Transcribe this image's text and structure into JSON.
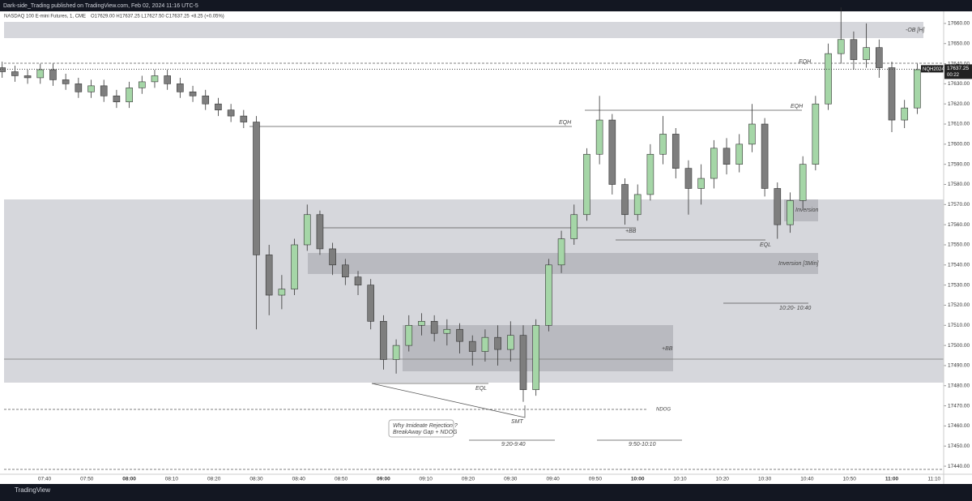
{
  "header": {
    "publisher": "Dark-side_Trading published on TradingView.com, Feb 02, 2024 11:16 UTC-5",
    "brand": "TradingView"
  },
  "chart_data": {
    "type": "candlestick",
    "title": "NASDAQ 100 E-mini Futures, 1, CME",
    "ohlc_text": "O17629.00 H17637.25 L17627.50 C17637.25 +8.25 (+0.05%)",
    "symbol": "NQH2024",
    "last_price": 17637.25,
    "countdown": "00:22",
    "up_color": "#a5d6a7",
    "down_color": "#7e7e7e",
    "x": [
      "07:30",
      "07:33",
      "07:36",
      "07:39",
      "07:42",
      "07:45",
      "07:48",
      "07:51",
      "07:54",
      "07:57",
      "08:00",
      "08:03",
      "08:06",
      "08:09",
      "08:12",
      "08:15",
      "08:18",
      "08:21",
      "08:24",
      "08:27",
      "08:30",
      "08:33",
      "08:36",
      "08:39",
      "08:42",
      "08:45",
      "08:48",
      "08:51",
      "08:54",
      "08:57",
      "09:00",
      "09:03",
      "09:06",
      "09:09",
      "09:12",
      "09:15",
      "09:18",
      "09:21",
      "09:24",
      "09:27",
      "09:30",
      "09:33",
      "09:36",
      "09:39",
      "09:42",
      "09:45",
      "09:48",
      "09:51",
      "09:54",
      "09:57",
      "10:00",
      "10:03",
      "10:06",
      "10:09",
      "10:12",
      "10:15",
      "10:18",
      "10:21",
      "10:24",
      "10:27",
      "10:30",
      "10:33",
      "10:36",
      "10:39",
      "10:42",
      "10:45",
      "10:48",
      "10:51",
      "10:54",
      "10:57",
      "11:00",
      "11:03",
      "11:06"
    ],
    "open": [
      17638,
      17636,
      17634,
      17633,
      17637,
      17632,
      17630,
      17626,
      17629,
      17624,
      17621,
      17628,
      17631,
      17634,
      17630,
      17626,
      17624,
      17620,
      17617,
      17614,
      17611,
      17545,
      17525,
      17528,
      17550,
      17565,
      17548,
      17540,
      17534,
      17530,
      17512,
      17493,
      17500,
      17510,
      17512,
      17506,
      17508,
      17502,
      17497,
      17504,
      17498,
      17505,
      17478,
      17510,
      17540,
      17553,
      17565,
      17595,
      17612,
      17580,
      17565,
      17575,
      17595,
      17605,
      17588,
      17578,
      17583,
      17598,
      17590,
      17600,
      17610,
      17578,
      17560,
      17572,
      17590,
      17620,
      17645,
      17652,
      17642,
      17648,
      17638,
      17612,
      17618
    ],
    "high": [
      17641,
      17639,
      17637,
      17640,
      17640,
      17635,
      17633,
      17632,
      17632,
      17627,
      17631,
      17634,
      17637,
      17637,
      17633,
      17629,
      17627,
      17623,
      17620,
      17617,
      17614,
      17550,
      17535,
      17553,
      17570,
      17567,
      17551,
      17543,
      17537,
      17533,
      17515,
      17503,
      17515,
      17516,
      17515,
      17513,
      17511,
      17505,
      17508,
      17510,
      17512,
      17510,
      17513,
      17543,
      17557,
      17570,
      17598,
      17624,
      17615,
      17583,
      17580,
      17600,
      17614,
      17608,
      17592,
      17590,
      17602,
      17603,
      17605,
      17620,
      17613,
      17581,
      17576,
      17594,
      17624,
      17650,
      17668,
      17656,
      17660,
      17652,
      17641,
      17622,
      17640
    ],
    "low": [
      17633,
      17631,
      17630,
      17630,
      17629,
      17627,
      17623,
      17623,
      17621,
      17618,
      17618,
      17625,
      17628,
      17627,
      17623,
      17621,
      17617,
      17614,
      17611,
      17608,
      17508,
      17515,
      17518,
      17525,
      17547,
      17545,
      17535,
      17530,
      17525,
      17508,
      17488,
      17486,
      17497,
      17505,
      17502,
      17500,
      17496,
      17490,
      17492,
      17490,
      17492,
      17472,
      17475,
      17507,
      17536,
      17550,
      17562,
      17590,
      17575,
      17560,
      17562,
      17572,
      17590,
      17583,
      17565,
      17570,
      17578,
      17585,
      17586,
      17596,
      17574,
      17553,
      17556,
      17568,
      17587,
      17617,
      17640,
      17637,
      17638,
      17633,
      17606,
      17608,
      17615
    ],
    "close": [
      17636,
      17634,
      17633,
      17637,
      17632,
      17630,
      17626,
      17629,
      17624,
      17621,
      17628,
      17631,
      17634,
      17630,
      17626,
      17624,
      17620,
      17617,
      17614,
      17611,
      17545,
      17525,
      17528,
      17550,
      17565,
      17548,
      17540,
      17534,
      17530,
      17512,
      17493,
      17500,
      17510,
      17512,
      17506,
      17508,
      17502,
      17497,
      17504,
      17498,
      17505,
      17478,
      17510,
      17540,
      17553,
      17565,
      17595,
      17612,
      17580,
      17565,
      17575,
      17595,
      17605,
      17588,
      17578,
      17583,
      17598,
      17590,
      17600,
      17610,
      17578,
      17560,
      17572,
      17590,
      17620,
      17645,
      17652,
      17642,
      17648,
      17638,
      17612,
      17618,
      17637
    ],
    "ylim": [
      17436,
      17666
    ],
    "yticks": [
      {
        "value": 17440,
        "label": "17440.00"
      },
      {
        "value": 17450,
        "label": "17450.00"
      },
      {
        "value": 17460,
        "label": "17460.00"
      },
      {
        "value": 17470,
        "label": "17470.00"
      },
      {
        "value": 17480,
        "label": "17480.00"
      },
      {
        "value": 17490,
        "label": "17490.00"
      },
      {
        "value": 17500,
        "label": "17500.00"
      },
      {
        "value": 17510,
        "label": "17510.00"
      },
      {
        "value": 17520,
        "label": "17520.00"
      },
      {
        "value": 17530,
        "label": "17530.00"
      },
      {
        "value": 17540,
        "label": "17540.00"
      },
      {
        "value": 17550,
        "label": "17550.00"
      },
      {
        "value": 17560,
        "label": "17560.00"
      },
      {
        "value": 17570,
        "label": "17570.00"
      },
      {
        "value": 17580,
        "label": "17580.00"
      },
      {
        "value": 17590,
        "label": "17590.00"
      },
      {
        "value": 17600,
        "label": "17600.00"
      },
      {
        "value": 17610,
        "label": "17610.00"
      },
      {
        "value": 17620,
        "label": "17620.00"
      },
      {
        "value": 17630,
        "label": "17630.00"
      },
      {
        "value": 17640,
        "label": "17640.00"
      },
      {
        "value": 17650,
        "label": "17650.00"
      },
      {
        "value": 17660,
        "label": "17660.00"
      }
    ],
    "xticks": [
      "07:40",
      "07:50",
      "08:00",
      "08:10",
      "08:20",
      "08:30",
      "08:40",
      "08:50",
      "09:00",
      "09:10",
      "09:20",
      "09:30",
      "09:40",
      "09:50",
      "10:00",
      "10:10",
      "10:20",
      "10:30",
      "10:40",
      "10:50",
      "11:00",
      "11:10"
    ],
    "annotations": {
      "ob": "-OB [H]",
      "eqh1": "EQH",
      "eqh2": "EQH",
      "eqh3": "EQH",
      "inversion": "Inversion",
      "bb1": "+BB",
      "eql1": "EQL",
      "inversion3": "Inversion [3Min]",
      "range1": "10:20- 10:40",
      "bb2": "+BB",
      "eql2": "EQL",
      "ndog": "NDOG",
      "smt": "SMT",
      "note1": "Why Imideate Rejection ?",
      "note2": "BreakAway Gap + NDOG",
      "range2": "9:20-9:40",
      "range3": "9:50-10:10"
    }
  }
}
